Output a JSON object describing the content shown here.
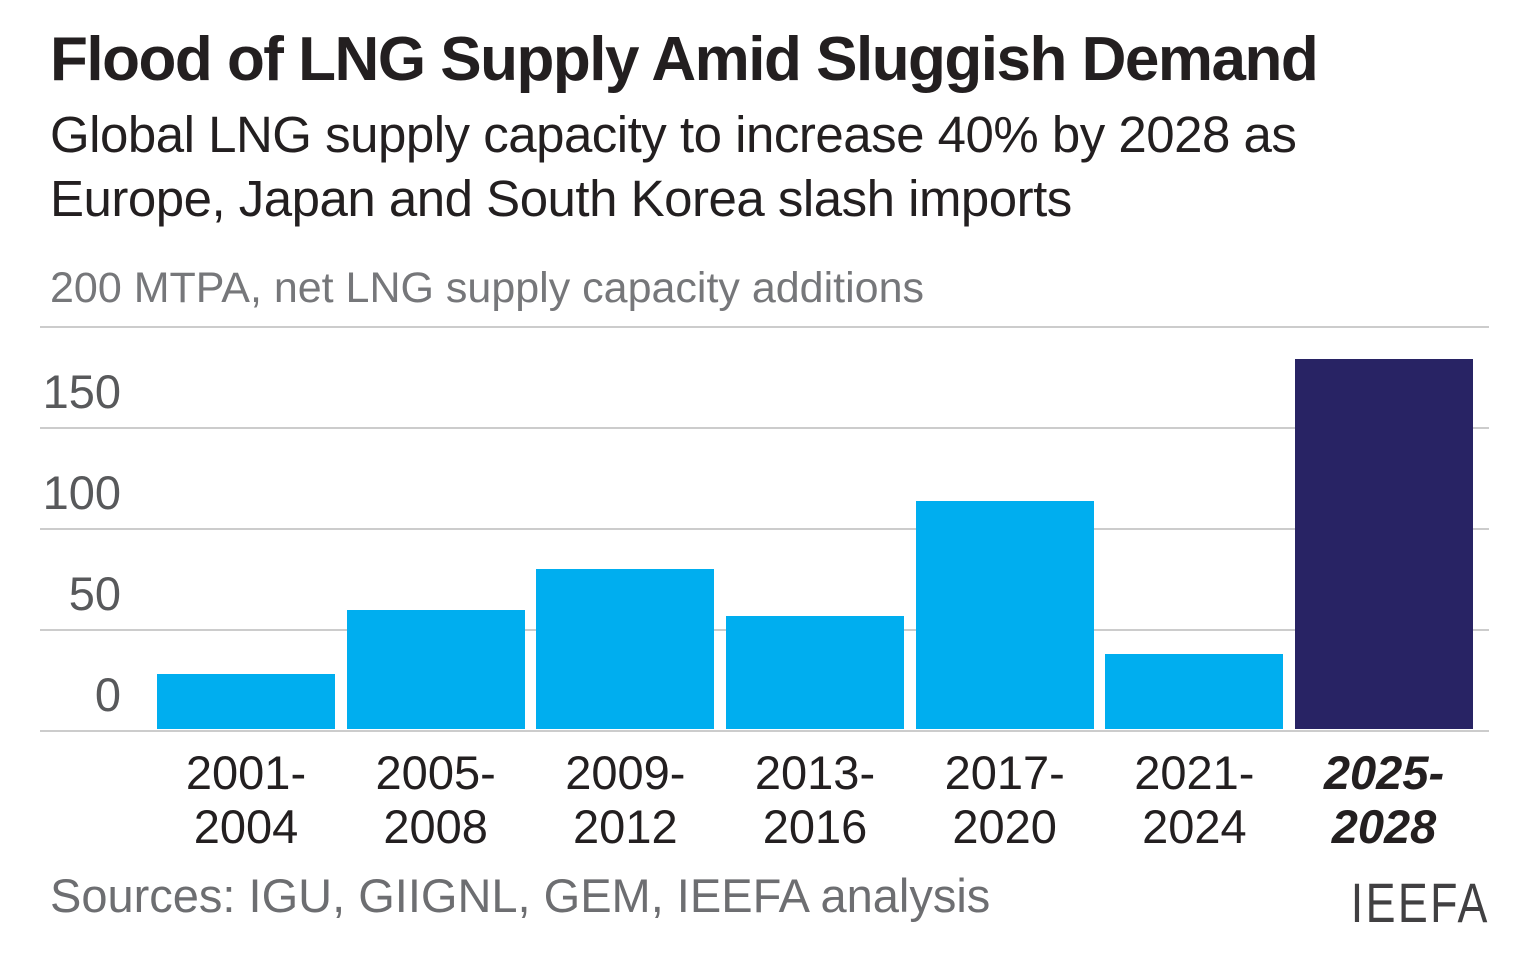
{
  "header": {
    "title": "Flood of LNG Supply Amid Sluggish Demand",
    "subtitle_line1": "Global LNG supply capacity to increase 40% by 2028 as",
    "subtitle_line2": "Europe, Japan and South Korea slash imports"
  },
  "footer": {
    "sources": "Sources: IGU, GIIGNL, GEM, IEEFA analysis",
    "logo": "IEEFA"
  },
  "colors": {
    "bar": "#00AEEF",
    "bar_highlight": "#282364",
    "gridline": "#cccccc",
    "ytick_text": "#58595b",
    "xtick_text": "#231f20",
    "title_text": "#231f20",
    "unit_text": "#76777a",
    "sources_text": "#6d6e71"
  },
  "chart_data": {
    "type": "bar",
    "title": "Flood of LNG Supply Amid Sluggish Demand",
    "subtitle": "Global LNG supply capacity to increase 40% by 2028 as Europe, Japan and South Korea slash imports",
    "unit_label": "200 MTPA, net LNG supply capacity additions",
    "ylabel": "net LNG supply capacity additions (MTPA)",
    "categories": [
      "2001-2004",
      "2005-2008",
      "2009-2012",
      "2013-2016",
      "2017-2020",
      "2021-2024",
      "2025-2028"
    ],
    "category_lines": [
      [
        "2001-",
        "2004"
      ],
      [
        "2005-",
        "2008"
      ],
      [
        "2009-",
        "2012"
      ],
      [
        "2013-",
        "2016"
      ],
      [
        "2017-",
        "2020"
      ],
      [
        "2021-",
        "2024"
      ],
      [
        "2025-",
        "2028"
      ]
    ],
    "values": [
      27,
      59,
      79,
      56,
      113,
      37,
      183
    ],
    "highlight_index": 6,
    "ylim": [
      0,
      200
    ],
    "gridline_values": [
      200,
      150,
      100,
      50,
      0
    ],
    "ytick_labels": [
      150,
      100,
      50,
      0
    ],
    "grid": "horizontal",
    "legend_position": "none"
  }
}
